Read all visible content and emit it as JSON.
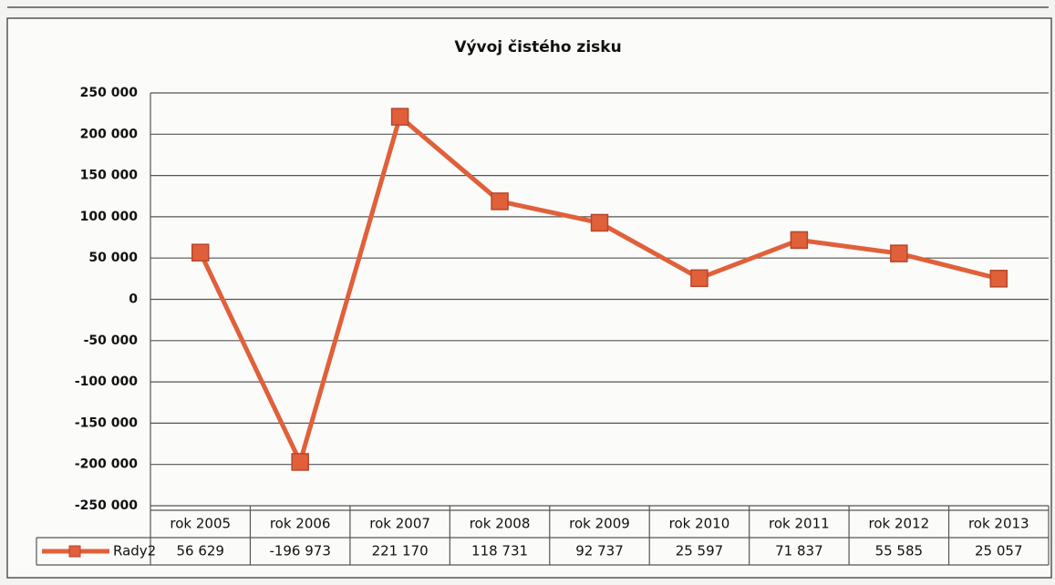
{
  "chart_data": {
    "type": "line",
    "title": "Vývoj  čistého zisku",
    "categories": [
      "rok 2005",
      "rok 2006",
      "rok 2007",
      "rok 2008",
      "rok 2009",
      "rok 2010",
      "rok 2011",
      "rok 2012",
      "rok 2013"
    ],
    "series": [
      {
        "name": "Rady2",
        "color": "#e0603a",
        "values": [
          56629,
          -196973,
          221170,
          118731,
          92737,
          25597,
          71837,
          55585,
          25057
        ],
        "value_labels": [
          "56 629",
          "-196 973",
          "221 170",
          "118 731",
          "92 737",
          "25 597",
          "71 837",
          "55 585",
          "25 057"
        ]
      }
    ],
    "ylim": [
      -250000,
      250000
    ],
    "yticks": [
      {
        "value": -250000,
        "label": "-250 000"
      },
      {
        "value": -200000,
        "label": "-200 000"
      },
      {
        "value": -150000,
        "label": "-150 000"
      },
      {
        "value": -100000,
        "label": "-100 000"
      },
      {
        "value": -50000,
        "label": "-50 000"
      },
      0,
      {
        "value": 50000,
        "label": "50 000"
      },
      {
        "value": 100000,
        "label": "100 000"
      },
      {
        "value": 150000,
        "label": "150 000"
      },
      {
        "value": 200000,
        "label": "200 000"
      },
      {
        "value": 250000,
        "label": "250 000"
      }
    ],
    "grid": true
  }
}
